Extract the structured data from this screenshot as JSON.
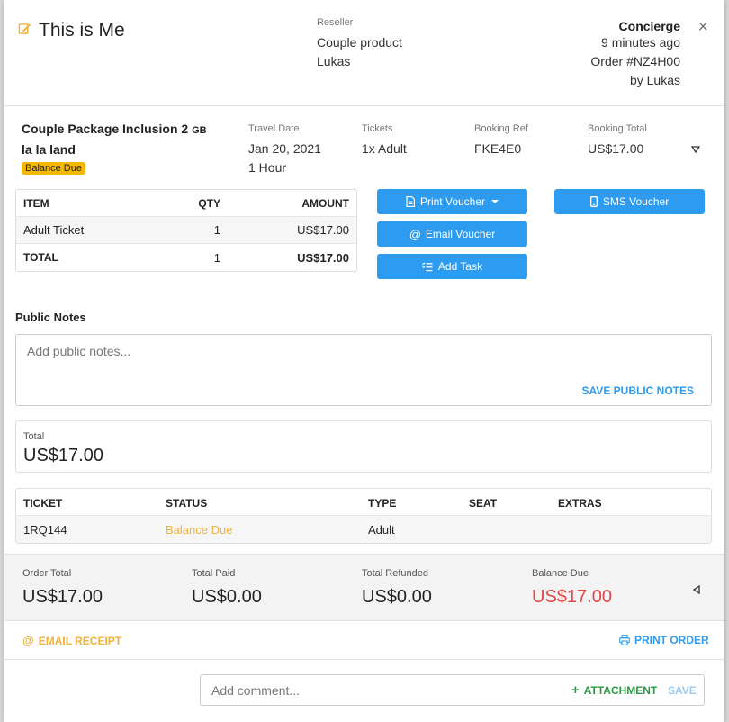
{
  "header": {
    "title": "This is Me",
    "reseller_label": "Reseller",
    "reseller_lines": [
      "Couple product",
      "Lukas"
    ],
    "concierge_title": "Concierge",
    "meta_lines": [
      "9 minutes ago",
      "Order #NZ4H00",
      "by Lukas"
    ],
    "close_glyph": "×"
  },
  "product": {
    "name_start": "Couple Package Inclusion 2",
    "name_tag": "GB",
    "name_end": "la la land",
    "badge": "Balance Due",
    "badge_color": "#f5b800"
  },
  "info": [
    {
      "label": "Travel Date",
      "lines": [
        "Jan 20, 2021",
        "1 Hour"
      ]
    },
    {
      "label": "Tickets",
      "lines": [
        "1x Adult"
      ]
    },
    {
      "label": "Booking Ref",
      "lines": [
        "FKE4E0"
      ]
    },
    {
      "label": "Booking Total",
      "lines": [
        "US$17.00"
      ]
    }
  ],
  "items_table": {
    "headers": [
      "ITEM",
      "QTY",
      "AMOUNT"
    ],
    "rows": [
      [
        "Adult Ticket",
        "1",
        "US$17.00"
      ]
    ],
    "total": [
      "TOTAL",
      "1",
      "US$17.00"
    ]
  },
  "buttons": {
    "print_voucher": "Print Voucher",
    "sms_voucher": "SMS Voucher",
    "email_voucher": "Email Voucher",
    "add_task": "Add Task",
    "color": "#2d9bef"
  },
  "public_notes": {
    "label": "Public Notes",
    "placeholder": "Add public notes...",
    "save_label": "SAVE PUBLIC NOTES"
  },
  "total_card": {
    "label": "Total",
    "value": "US$17.00"
  },
  "tickets_table": {
    "headers": [
      "TICKET",
      "STATUS",
      "TYPE",
      "SEAT",
      "EXTRAS"
    ],
    "rows": [
      [
        "1RQ144",
        "Balance Due",
        "Adult",
        "",
        ""
      ]
    ],
    "status_color": "#f0b23c"
  },
  "summary": [
    {
      "label": "Order Total",
      "value": "US$17.00"
    },
    {
      "label": "Total Paid",
      "value": "US$0.00"
    },
    {
      "label": "Total Refunded",
      "value": "US$0.00"
    },
    {
      "label": "Balance Due",
      "value": "US$17.00"
    }
  ],
  "actions": {
    "email_receipt": "EMAIL RECEIPT",
    "print_order": "PRINT ORDER",
    "email_color": "#f0b23c",
    "print_color": "#2d9bef"
  },
  "comment": {
    "placeholder": "Add comment...",
    "attachment_label": "ATTACHMENT",
    "save_label": "SAVE"
  }
}
